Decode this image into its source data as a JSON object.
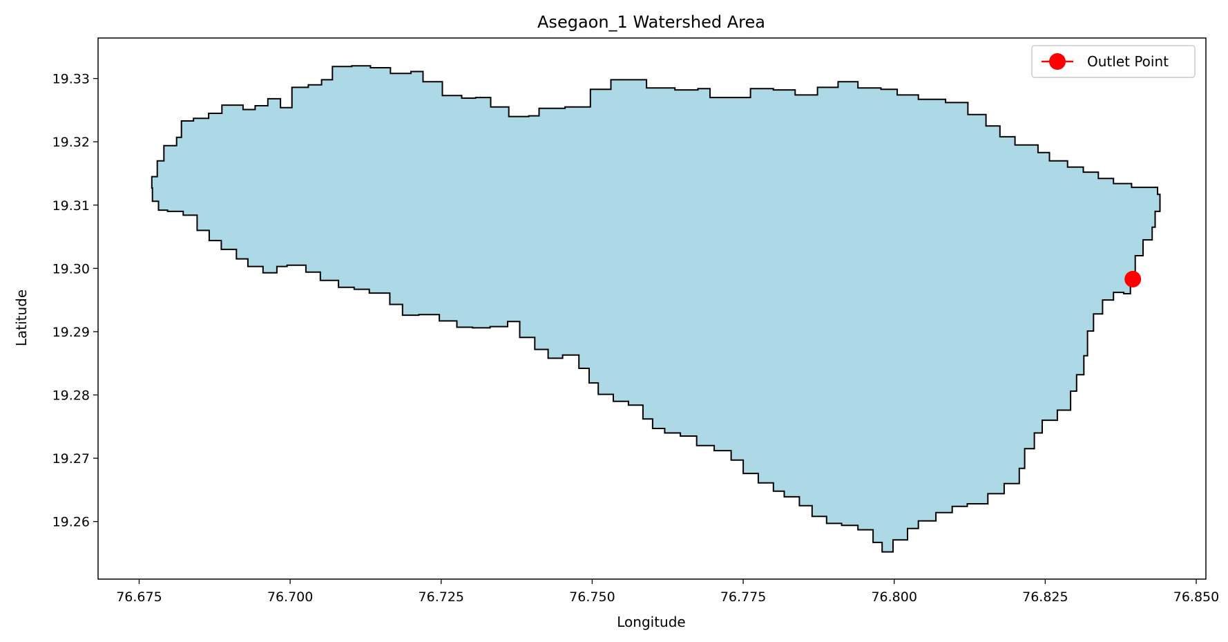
{
  "chart_data": {
    "type": "area",
    "title": "Asegaon_1 Watershed Area",
    "xlabel": "Longitude",
    "ylabel": "Latitude",
    "xlim": [
      76.6682,
      76.8516
    ],
    "ylim": [
      19.2509,
      19.3364
    ],
    "x_ticks": [
      "76.675",
      "76.700",
      "76.725",
      "76.750",
      "76.775",
      "76.800",
      "76.825",
      "76.850"
    ],
    "y_ticks": [
      "19.26",
      "19.27",
      "19.28",
      "19.29",
      "19.30",
      "19.31",
      "19.32",
      "19.33"
    ],
    "grid": false,
    "legend_position": "top-right",
    "legend": [
      {
        "label": "Outlet Point",
        "color": "#ff0000"
      }
    ],
    "colors": {
      "fill": "#add8e6",
      "edge": "#000000",
      "outlet": "#ff0000"
    },
    "outlet_point": {
      "lon": 76.8395,
      "lat": 19.2983
    },
    "boundary": [
      [
        76.6771,
        19.3145
      ],
      [
        76.678,
        19.317
      ],
      [
        76.6791,
        19.3194
      ],
      [
        76.6812,
        19.3207
      ],
      [
        76.682,
        19.3233
      ],
      [
        76.684,
        19.3237
      ],
      [
        76.6865,
        19.3245
      ],
      [
        76.6887,
        19.3258
      ],
      [
        76.6922,
        19.3251
      ],
      [
        76.6942,
        19.3257
      ],
      [
        76.6963,
        19.3268
      ],
      [
        76.6984,
        19.3254
      ],
      [
        76.7003,
        19.3286
      ],
      [
        76.703,
        19.329
      ],
      [
        76.7052,
        19.3298
      ],
      [
        76.707,
        19.3319
      ],
      [
        76.7102,
        19.332
      ],
      [
        76.7133,
        19.3317
      ],
      [
        76.7166,
        19.3308
      ],
      [
        76.72,
        19.3311
      ],
      [
        76.722,
        19.3295
      ],
      [
        76.7252,
        19.3273
      ],
      [
        76.7284,
        19.3269
      ],
      [
        76.7307,
        19.327
      ],
      [
        76.7332,
        19.3255
      ],
      [
        76.7362,
        19.324
      ],
      [
        76.7395,
        19.3241
      ],
      [
        76.7412,
        19.3253
      ],
      [
        76.7455,
        19.3255
      ],
      [
        76.7497,
        19.3283
      ],
      [
        76.7531,
        19.3298
      ],
      [
        76.7556,
        19.3298
      ],
      [
        76.759,
        19.3285
      ],
      [
        76.7637,
        19.3282
      ],
      [
        76.7675,
        19.3284
      ],
      [
        76.7695,
        19.327
      ],
      [
        76.7724,
        19.327
      ],
      [
        76.7762,
        19.3284
      ],
      [
        76.78,
        19.3282
      ],
      [
        76.7836,
        19.3274
      ],
      [
        76.7873,
        19.3286
      ],
      [
        76.7907,
        19.3295
      ],
      [
        76.794,
        19.3285
      ],
      [
        76.7978,
        19.3283
      ],
      [
        76.8005,
        19.3274
      ],
      [
        76.804,
        19.3267
      ],
      [
        76.8085,
        19.3262
      ],
      [
        76.8122,
        19.3243
      ],
      [
        76.8152,
        19.3225
      ],
      [
        76.8175,
        19.3208
      ],
      [
        76.82,
        19.3195
      ],
      [
        76.8238,
        19.3183
      ],
      [
        76.8257,
        19.317
      ],
      [
        76.8287,
        19.316
      ],
      [
        76.8313,
        19.3152
      ],
      [
        76.8338,
        19.3142
      ],
      [
        76.8363,
        19.3134
      ],
      [
        76.8393,
        19.3128
      ],
      [
        76.8417,
        19.3128
      ],
      [
        76.8436,
        19.3117
      ],
      [
        76.844,
        19.309
      ],
      [
        76.8432,
        19.3065
      ],
      [
        76.8427,
        19.3045
      ],
      [
        76.8412,
        19.302
      ],
      [
        76.8399,
        19.2978
      ],
      [
        76.8391,
        19.296
      ],
      [
        76.838,
        19.2962
      ],
      [
        76.8363,
        19.295
      ],
      [
        76.8345,
        19.2928
      ],
      [
        76.833,
        19.2901
      ],
      [
        76.832,
        19.2862
      ],
      [
        76.8314,
        19.2832
      ],
      [
        76.8302,
        19.2806
      ],
      [
        76.8292,
        19.2776
      ],
      [
        76.827,
        19.276
      ],
      [
        76.8245,
        19.274
      ],
      [
        76.8232,
        19.2715
      ],
      [
        76.8216,
        19.2684
      ],
      [
        76.8207,
        19.266
      ],
      [
        76.8182,
        19.2644
      ],
      [
        76.8155,
        19.2628
      ],
      [
        76.8121,
        19.2624
      ],
      [
        76.8096,
        19.2614
      ],
      [
        76.8069,
        19.2601
      ],
      [
        76.804,
        19.2589
      ],
      [
        76.8022,
        19.2571
      ],
      [
        76.7998,
        19.2552
      ],
      [
        76.798,
        19.2567
      ],
      [
        76.7965,
        19.2587
      ],
      [
        76.794,
        19.2594
      ],
      [
        76.7913,
        19.2597
      ],
      [
        76.7888,
        19.2608
      ],
      [
        76.7864,
        19.2625
      ],
      [
        76.7843,
        19.2639
      ],
      [
        76.7818,
        19.2648
      ],
      [
        76.78,
        19.2661
      ],
      [
        76.7775,
        19.2676
      ],
      [
        76.775,
        19.2697
      ],
      [
        76.773,
        19.2712
      ],
      [
        76.7702,
        19.272
      ],
      [
        76.7673,
        19.2735
      ],
      [
        76.7646,
        19.274
      ],
      [
        76.762,
        19.2747
      ],
      [
        76.76,
        19.2762
      ],
      [
        76.7584,
        19.2784
      ],
      [
        76.756,
        19.279
      ],
      [
        76.7535,
        19.2801
      ],
      [
        76.751,
        19.2819
      ],
      [
        76.7495,
        19.2842
      ],
      [
        76.7478,
        19.2863
      ],
      [
        76.7451,
        19.2858
      ],
      [
        76.7427,
        19.2872
      ],
      [
        76.7405,
        19.2891
      ],
      [
        76.738,
        19.2916
      ],
      [
        76.736,
        19.2908
      ],
      [
        76.7331,
        19.2906
      ],
      [
        76.7302,
        19.2907
      ],
      [
        76.7276,
        19.2917
      ],
      [
        76.7247,
        19.2927
      ],
      [
        76.7213,
        19.2926
      ],
      [
        76.7186,
        19.2943
      ],
      [
        76.7165,
        19.2961
      ],
      [
        76.7131,
        19.2967
      ],
      [
        76.7106,
        19.297
      ],
      [
        76.708,
        19.2981
      ],
      [
        76.705,
        19.2994
      ],
      [
        76.7026,
        19.3005
      ],
      [
        76.6995,
        19.3003
      ],
      [
        76.6978,
        19.2993
      ],
      [
        76.6955,
        19.3003
      ],
      [
        76.693,
        19.3015
      ],
      [
        76.6911,
        19.303
      ],
      [
        76.6886,
        19.3044
      ],
      [
        76.6866,
        19.306
      ],
      [
        76.6846,
        19.3084
      ],
      [
        76.6823,
        19.309
      ],
      [
        76.6797,
        19.3092
      ],
      [
        76.6782,
        19.3106
      ],
      [
        76.6772,
        19.3127
      ]
    ]
  }
}
